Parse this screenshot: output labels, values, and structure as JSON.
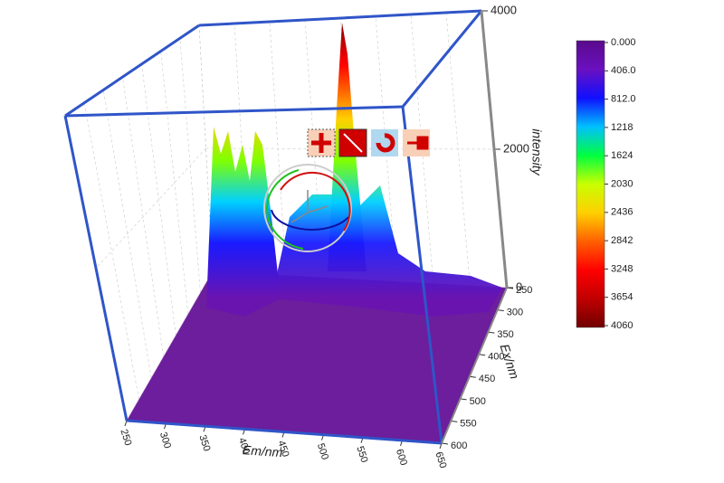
{
  "chart_data": {
    "type": "surface",
    "xlabel": "Em/nm",
    "ylabel": "Ex/nm",
    "zlabel": "intensity",
    "xlim": [
      250,
      650
    ],
    "xticks": [
      250,
      300,
      350,
      400,
      450,
      500,
      550,
      600,
      650
    ],
    "ylim": [
      250,
      600
    ],
    "yticks": [
      250,
      300,
      350,
      400,
      450,
      500,
      550,
      600
    ],
    "zlim": [
      0,
      4000
    ],
    "zticks": [
      0,
      2000,
      4000
    ],
    "grid": true,
    "box_color": "#2f55c8",
    "colorbar": {
      "lim": [
        0,
        4060
      ],
      "ticks": [
        {
          "value": 0,
          "label": "0.000"
        },
        {
          "value": 406,
          "label": "406.0"
        },
        {
          "value": 812,
          "label": "812.0"
        },
        1218,
        1624,
        2030,
        2436,
        2842,
        3248,
        3654,
        4060
      ],
      "colors": [
        "#5a0a8c",
        "#6a10c0",
        "#1010ff",
        "#00c0ff",
        "#00ff40",
        "#c8ff00",
        "#ffd000",
        "#ff6000",
        "#ff0000",
        "#c00000",
        "#700000"
      ]
    }
  }
}
